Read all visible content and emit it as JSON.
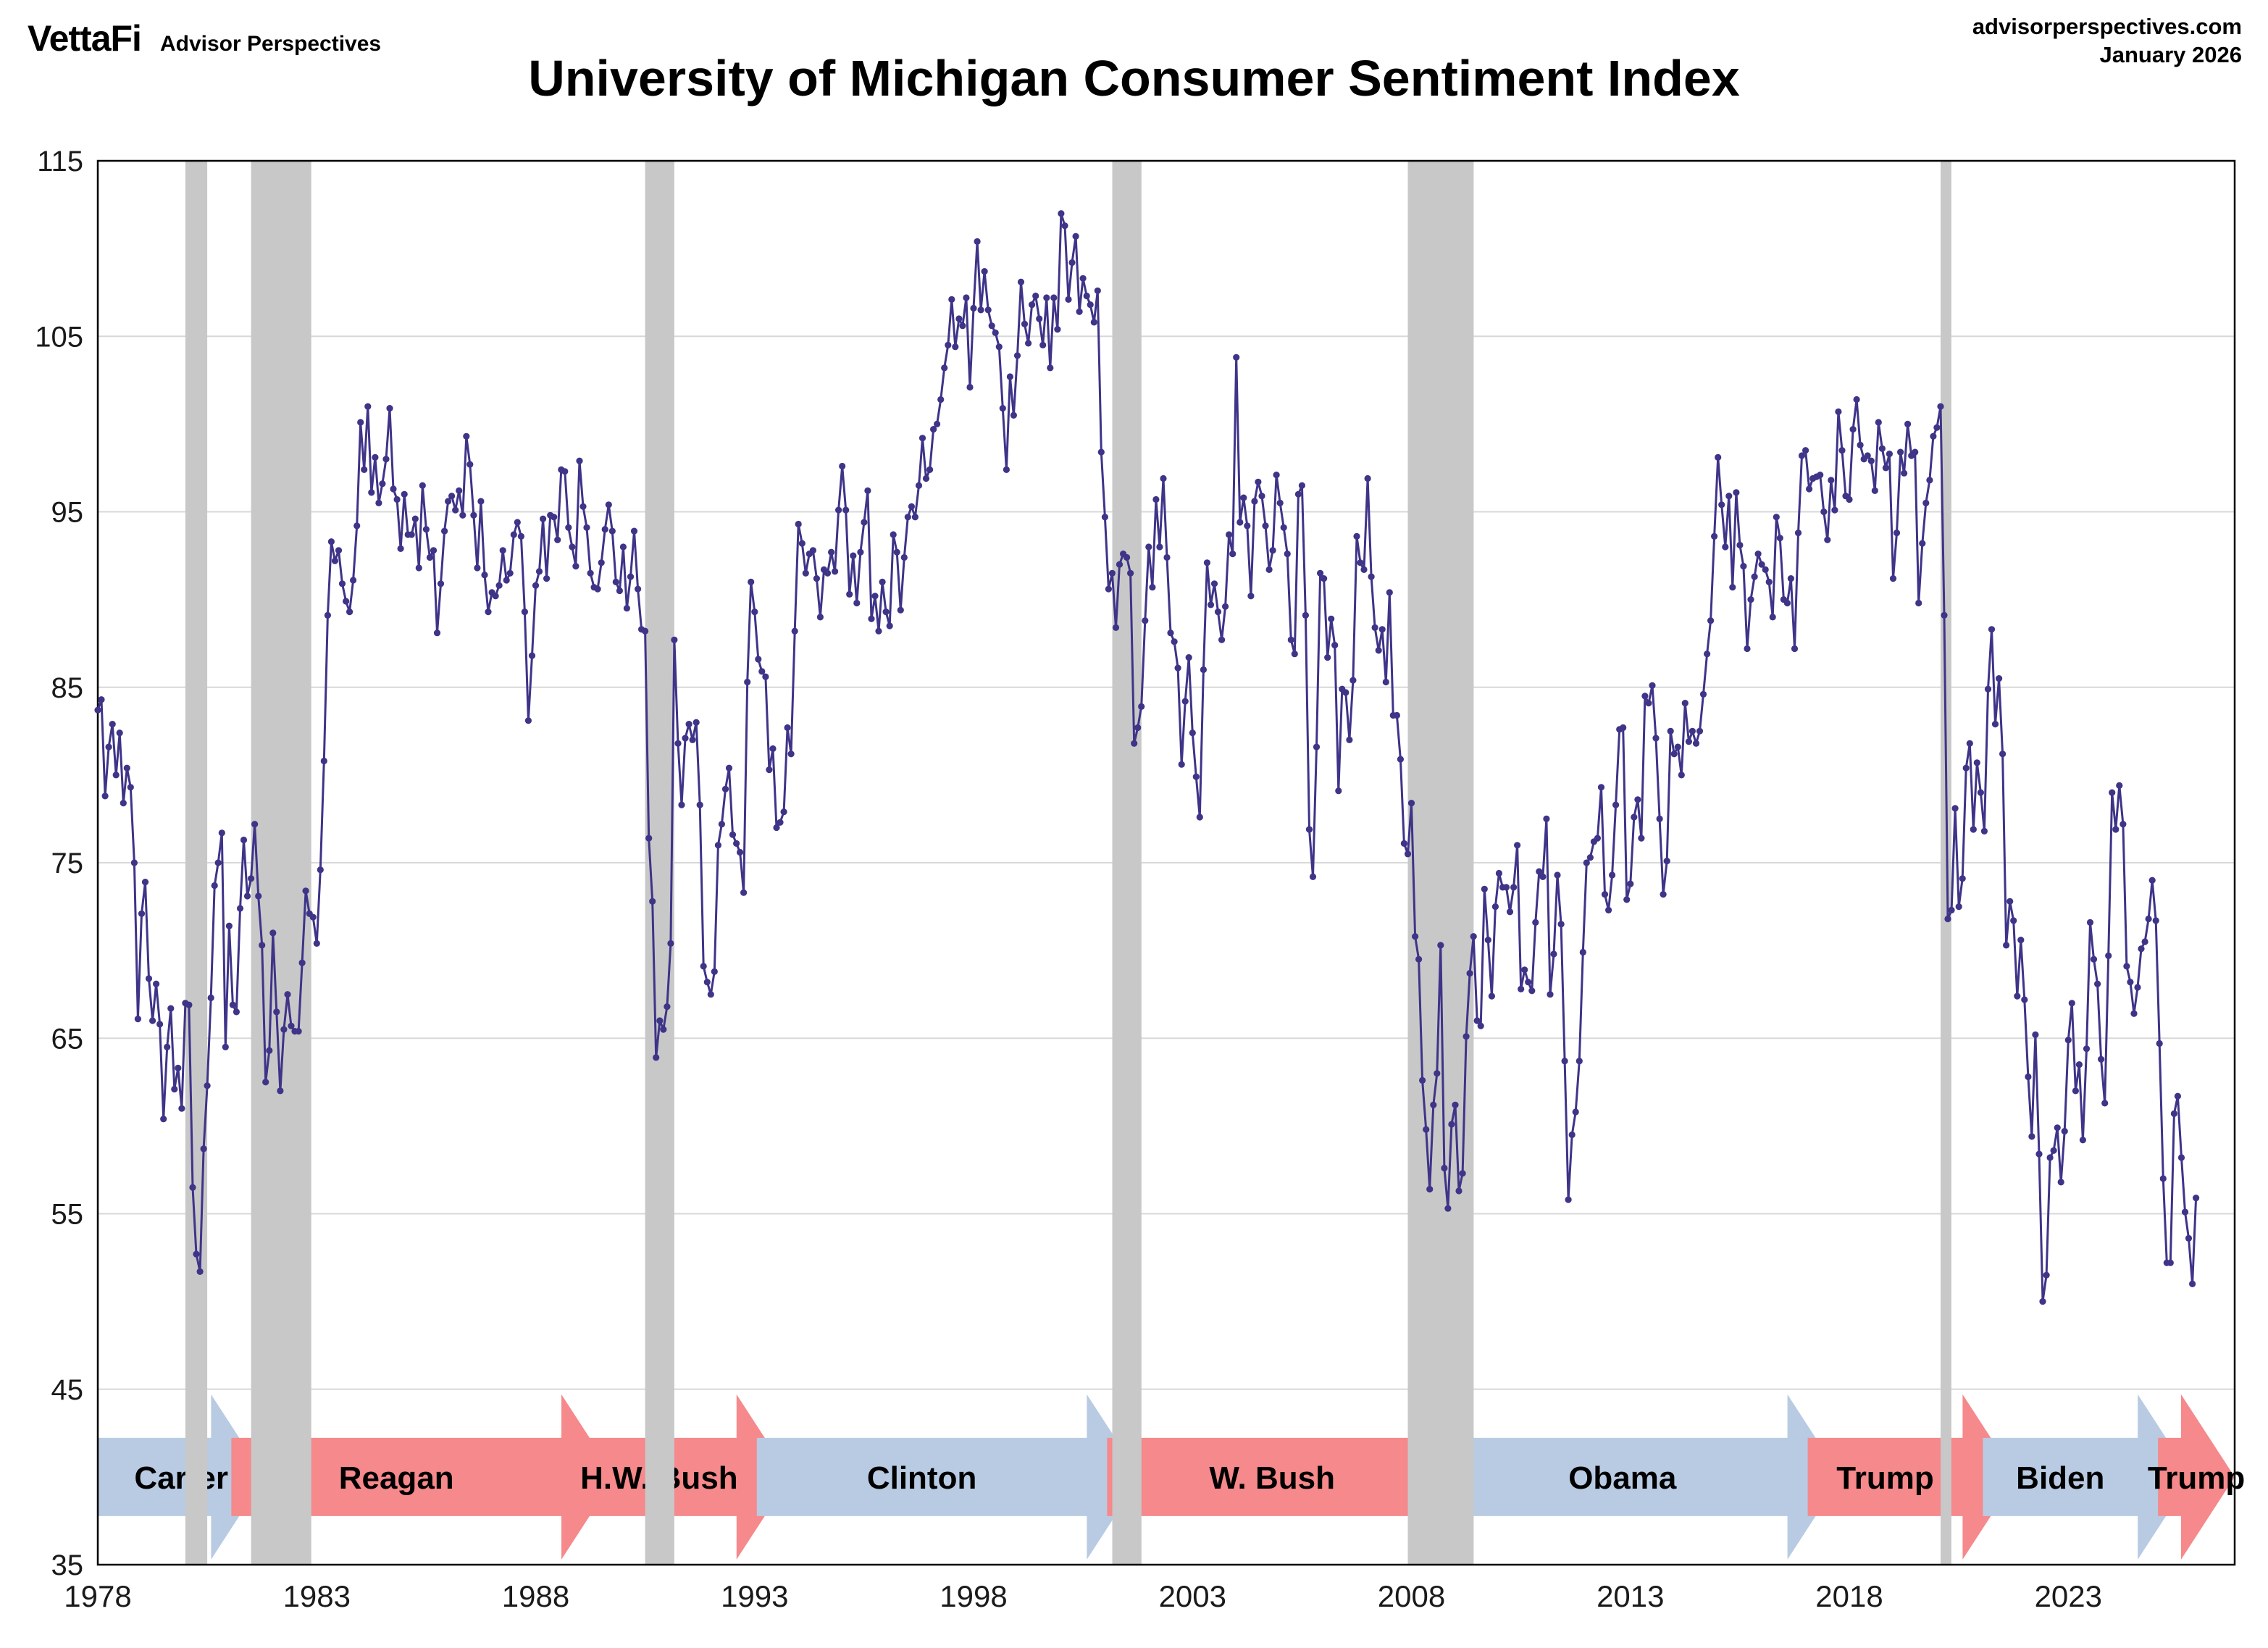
{
  "header": {
    "logo": "VettaFi",
    "logo_sub": "Advisor Perspectives",
    "site": "advisorperspectives.com",
    "date": "January 2026",
    "title": "University of Michigan Consumer Sentiment Index"
  },
  "chart_data": {
    "type": "line",
    "title": "University of Michigan Consumer Sentiment Index",
    "xlabel": "",
    "ylabel": "",
    "ylim": [
      35,
      115
    ],
    "yticks": [
      35,
      45,
      55,
      65,
      75,
      85,
      95,
      105,
      115
    ],
    "xticks": [
      1978,
      1983,
      1988,
      1993,
      1998,
      2003,
      2008,
      2013,
      2018,
      2023
    ],
    "x_range": [
      1978,
      2026.8
    ],
    "grid": true,
    "line_color": "#3e3488",
    "marker_color": "#3e3488",
    "grid_color": "#d8d8d8",
    "recession_color": "#c8c8c8",
    "frequency": "monthly",
    "recessions": [
      [
        1980.0,
        1980.5
      ],
      [
        1981.5,
        1982.875
      ],
      [
        1990.5,
        1991.167
      ],
      [
        2001.167,
        2001.833
      ],
      [
        2007.917,
        2009.42
      ],
      [
        2020.083,
        2020.33
      ]
    ],
    "values_by_year": {
      "1978": [
        83.7,
        84.3,
        78.8,
        81.6,
        82.9,
        80.0,
        82.4,
        78.4,
        80.4,
        79.3,
        75.0,
        66.1
      ],
      "1979": [
        72.1,
        73.9,
        68.4,
        66.0,
        68.1,
        65.8,
        60.4,
        64.5,
        66.7,
        62.1,
        63.3,
        61.0
      ],
      "1980": [
        67.0,
        66.9,
        56.5,
        52.7,
        51.7,
        58.7,
        62.3,
        67.3,
        73.7,
        75.0,
        76.7,
        64.5
      ],
      "1981": [
        71.4,
        66.9,
        66.5,
        72.4,
        76.3,
        73.1,
        74.1,
        77.2,
        73.1,
        70.3,
        62.5,
        64.3
      ],
      "1982": [
        71.0,
        66.5,
        62.0,
        65.5,
        67.5,
        65.7,
        65.4,
        65.4,
        69.3,
        73.4,
        72.1,
        71.9
      ],
      "1983": [
        70.4,
        74.6,
        80.8,
        89.1,
        93.3,
        92.2,
        92.8,
        90.9,
        89.9,
        89.3,
        91.1,
        94.2
      ],
      "1984": [
        100.1,
        97.4,
        101.0,
        96.1,
        98.1,
        95.5,
        96.6,
        98.0,
        100.9,
        96.3,
        95.7,
        92.9
      ],
      "1985": [
        96.0,
        93.7,
        93.7,
        94.6,
        91.8,
        96.5,
        94.0,
        92.4,
        92.8,
        88.1,
        90.9,
        93.9
      ],
      "1986": [
        95.6,
        95.9,
        95.1,
        96.2,
        94.8,
        99.3,
        97.7,
        94.8,
        91.8,
        95.6,
        91.4,
        89.3
      ],
      "1987": [
        90.4,
        90.2,
        90.8,
        92.8,
        91.1,
        91.5,
        93.7,
        94.4,
        93.6,
        89.3,
        83.1,
        86.8
      ],
      "1988": [
        90.8,
        91.6,
        94.6,
        91.2,
        94.8,
        94.7,
        93.4,
        97.4,
        97.3,
        94.1,
        93.0,
        91.9
      ],
      "1989": [
        97.9,
        95.3,
        94.1,
        91.5,
        90.7,
        90.6,
        92.1,
        94.0,
        95.4,
        93.9,
        91.0,
        90.5
      ],
      "1990": [
        93.0,
        89.5,
        91.3,
        93.9,
        90.6,
        88.3,
        88.2,
        76.4,
        72.8,
        63.9,
        66.0,
        65.5
      ],
      "1991": [
        66.8,
        70.4,
        87.7,
        81.8,
        78.3,
        82.1,
        82.9,
        82.0,
        83.0,
        78.3,
        69.1,
        68.2
      ],
      "1992": [
        67.5,
        68.8,
        76.0,
        77.2,
        79.2,
        80.4,
        76.6,
        76.1,
        75.6,
        73.3,
        85.3,
        91.0
      ],
      "1993": [
        89.3,
        86.6,
        85.9,
        85.6,
        80.3,
        81.5,
        77.0,
        77.3,
        77.9,
        82.7,
        81.2,
        88.2
      ],
      "1994": [
        94.3,
        93.2,
        91.5,
        92.6,
        92.8,
        91.2,
        89.0,
        91.7,
        91.5,
        92.7,
        91.6,
        95.1
      ],
      "1995": [
        97.6,
        95.1,
        90.3,
        92.5,
        89.8,
        92.7,
        94.4,
        96.2,
        88.9,
        90.2,
        88.2,
        91.0
      ],
      "1996": [
        89.3,
        88.5,
        93.7,
        92.7,
        89.4,
        92.4,
        94.7,
        95.3,
        94.7,
        96.5,
        99.2,
        96.9
      ],
      "1997": [
        97.4,
        99.7,
        100.0,
        101.4,
        103.2,
        104.5,
        107.1,
        104.4,
        106.0,
        105.6,
        107.2,
        102.1
      ],
      "1998": [
        106.6,
        110.4,
        106.5,
        108.7,
        106.5,
        105.6,
        105.2,
        104.4,
        100.9,
        97.4,
        102.7,
        100.5
      ],
      "1999": [
        103.9,
        108.1,
        105.7,
        104.6,
        106.8,
        107.3,
        106.0,
        104.5,
        107.2,
        103.2,
        107.2,
        105.4
      ],
      "2000": [
        112.0,
        111.3,
        107.1,
        109.2,
        110.7,
        106.4,
        108.3,
        107.3,
        106.8,
        105.8,
        107.6,
        98.4
      ],
      "2001": [
        94.7,
        90.6,
        91.5,
        88.4,
        92.0,
        92.6,
        92.4,
        91.5,
        81.8,
        82.7,
        83.9,
        88.8
      ],
      "2002": [
        93.0,
        90.7,
        95.7,
        93.0,
        96.9,
        92.4,
        88.1,
        87.6,
        86.1,
        80.6,
        84.2,
        86.7
      ],
      "2003": [
        82.4,
        79.9,
        77.6,
        86.0,
        92.1,
        89.7,
        90.9,
        89.3,
        87.7,
        89.6,
        93.7,
        92.6
      ],
      "2004": [
        103.8,
        94.4,
        95.8,
        94.2,
        90.2,
        95.6,
        96.7,
        95.9,
        94.2,
        91.7,
        92.8,
        97.1
      ],
      "2005": [
        95.5,
        94.1,
        92.6,
        87.7,
        86.9,
        96.0,
        96.5,
        89.1,
        76.9,
        74.2,
        81.6,
        91.5
      ],
      "2006": [
        91.2,
        86.7,
        88.9,
        87.4,
        79.1,
        84.9,
        84.7,
        82.0,
        85.4,
        93.6,
        92.1,
        91.7
      ],
      "2007": [
        96.9,
        91.3,
        88.4,
        87.1,
        88.3,
        85.3,
        90.4,
        83.4,
        83.4,
        80.9,
        76.1,
        75.5
      ],
      "2008": [
        78.4,
        70.8,
        69.5,
        62.6,
        59.8,
        56.4,
        61.2,
        63.0,
        70.3,
        57.6,
        55.3,
        60.1
      ],
      "2009": [
        61.2,
        56.3,
        57.3,
        65.1,
        68.7,
        70.8,
        66.0,
        65.7,
        73.5,
        70.6,
        67.4,
        72.5
      ],
      "2010": [
        74.4,
        73.6,
        73.6,
        72.2,
        73.6,
        76.0,
        67.8,
        68.9,
        68.2,
        67.7,
        71.6,
        74.5
      ],
      "2011": [
        74.2,
        77.5,
        67.5,
        69.8,
        74.3,
        71.5,
        63.7,
        55.8,
        59.5,
        60.8,
        63.7,
        69.9
      ],
      "2012": [
        75.0,
        75.3,
        76.2,
        76.4,
        79.3,
        73.2,
        72.3,
        74.3,
        78.3,
        82.6,
        82.7,
        72.9
      ],
      "2013": [
        73.8,
        77.6,
        78.6,
        76.4,
        84.5,
        84.1,
        85.1,
        82.1,
        77.5,
        73.2,
        75.1,
        82.5
      ],
      "2014": [
        81.2,
        81.6,
        80.0,
        84.1,
        81.9,
        82.5,
        81.8,
        82.5,
        84.6,
        86.9,
        88.8,
        93.6
      ],
      "2015": [
        98.1,
        95.4,
        93.0,
        95.9,
        90.7,
        96.1,
        93.1,
        91.9,
        87.2,
        90.0,
        91.3,
        92.6
      ],
      "2016": [
        92.0,
        91.7,
        91.0,
        89.0,
        94.7,
        93.5,
        90.0,
        89.8,
        91.2,
        87.2,
        93.8,
        98.2
      ],
      "2017": [
        98.5,
        96.3,
        96.9,
        97.0,
        97.1,
        95.0,
        93.4,
        96.8,
        95.1,
        100.7,
        98.5,
        95.9
      ],
      "2018": [
        95.7,
        99.7,
        101.4,
        98.8,
        98.0,
        98.2,
        97.9,
        96.2,
        100.1,
        98.6,
        97.5,
        98.3
      ],
      "2019": [
        91.2,
        93.8,
        98.4,
        97.2,
        100.0,
        98.2,
        98.4,
        89.8,
        93.2,
        95.5,
        96.8,
        99.3
      ],
      "2020": [
        99.8,
        101.0,
        89.1,
        71.8,
        72.3,
        78.1,
        72.5,
        74.1,
        80.4,
        81.8,
        76.9,
        80.7
      ],
      "2021": [
        79.0,
        76.8,
        84.9,
        88.3,
        82.9,
        85.5,
        81.2,
        70.3,
        72.8,
        71.7,
        67.4,
        70.6
      ],
      "2022": [
        67.2,
        62.8,
        59.4,
        65.2,
        58.4,
        50.0,
        51.5,
        58.2,
        58.6,
        59.9,
        56.8,
        59.7
      ],
      "2023": [
        64.9,
        67.0,
        62.0,
        63.5,
        59.2,
        64.4,
        71.6,
        69.5,
        68.1,
        63.8,
        61.3,
        69.7
      ],
      "2024": [
        79.0,
        76.9,
        79.4,
        77.2,
        69.1,
        68.2,
        66.4,
        67.9,
        70.1,
        70.5,
        71.8,
        74.0
      ],
      "2025": [
        71.7,
        64.7,
        57.0,
        52.2,
        52.2,
        60.7,
        61.7,
        58.2,
        55.1,
        53.6,
        51.0,
        55.9
      ]
    },
    "presidents": [
      {
        "label": "Carter",
        "start": 1978.0,
        "end": 1981.05,
        "color": "#b8cbe3"
      },
      {
        "label": "Reagan",
        "start": 1981.05,
        "end": 1989.05,
        "color": "#f5898b"
      },
      {
        "label": "H.W. Bush",
        "start": 1989.05,
        "end": 1993.05,
        "color": "#f5898b"
      },
      {
        "label": "Clinton",
        "start": 1993.05,
        "end": 2001.05,
        "color": "#b8cbe3"
      },
      {
        "label": "W. Bush",
        "start": 2001.05,
        "end": 2009.05,
        "color": "#f5898b"
      },
      {
        "label": "Obama",
        "start": 2009.05,
        "end": 2017.05,
        "color": "#b8cbe3"
      },
      {
        "label": "Trump",
        "start": 2017.05,
        "end": 2021.05,
        "color": "#f5898b"
      },
      {
        "label": "Biden",
        "start": 2021.05,
        "end": 2025.05,
        "color": "#b8cbe3"
      },
      {
        "label": "Trump",
        "start": 2025.05,
        "end": 2026.8,
        "color": "#f5898b"
      }
    ],
    "arrow_band_center_value": 40
  }
}
